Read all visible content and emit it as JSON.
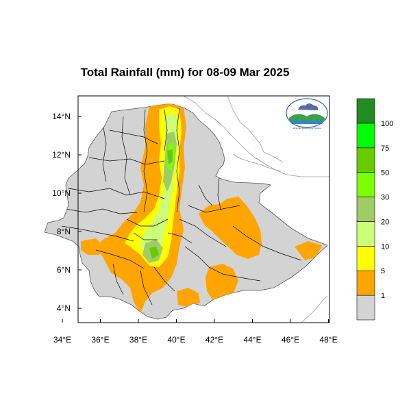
{
  "title": "Total Rainfall (mm) for 08-09 Mar 2025",
  "colors": {
    "land": "#d3d3d3",
    "border": "#000000",
    "coast": "#9a9a9a",
    "c1": "#ffa500",
    "c5": "#ffff00",
    "c10": "#ccff77",
    "c20": "#a0cc66",
    "c30": "#7cff00",
    "c50": "#66cc00",
    "c75": "#00ff00",
    "c100": "#228b22"
  },
  "axes": {
    "x_ticks": [
      "34°E",
      "36°E",
      "38°E",
      "40°E",
      "42°E",
      "44°E",
      "46°E",
      "48°E"
    ],
    "y_ticks": [
      "14°N",
      "12°N",
      "10°N",
      "8°N",
      "6°N",
      "4°N"
    ]
  },
  "legend": {
    "levels": [
      "1",
      "5",
      "10",
      "20",
      "30",
      "50",
      "75",
      "100"
    ],
    "swatch_colors": [
      "#d3d3d3",
      "#ffa500",
      "#ffff00",
      "#ccff77",
      "#a0cc66",
      "#7cff00",
      "#66cc00",
      "#00ff00",
      "#228b22"
    ]
  },
  "logo": {
    "text": "Ethiopian Meteorology Institute"
  }
}
